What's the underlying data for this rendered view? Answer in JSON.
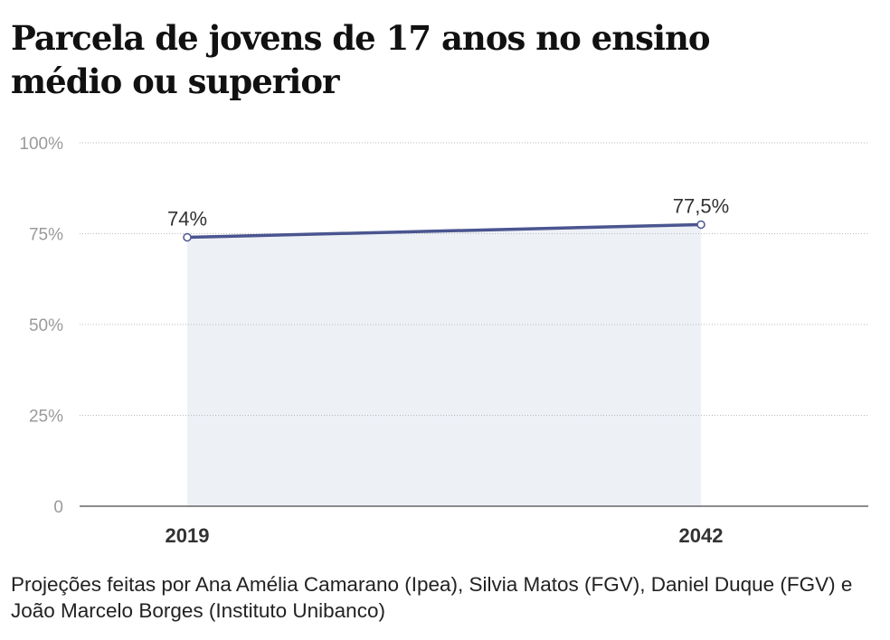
{
  "chart_data": {
    "type": "area",
    "title": "Parcela de jovens de 17 anos no ensino médio ou superior",
    "categories": [
      "2019",
      "2042"
    ],
    "values": [
      74,
      77.5
    ],
    "data_labels": [
      "74%",
      "77,5%"
    ],
    "ylim": [
      0,
      100
    ],
    "yticks": [
      0,
      25,
      50,
      75,
      100
    ],
    "ytick_labels": [
      "0",
      "25%",
      "50%",
      "75%",
      "100%"
    ],
    "grid": true,
    "colors": {
      "line": "#4a5590",
      "area": "#edf0f5",
      "grid": "#bbbbbb",
      "axis": "#666666"
    }
  },
  "footnote": "Projeções feitas por Ana Amélia Camarano (Ipea), Silvia Matos (FGV), Daniel Duque (FGV) e João Marcelo Borges (Instituto Unibanco)"
}
